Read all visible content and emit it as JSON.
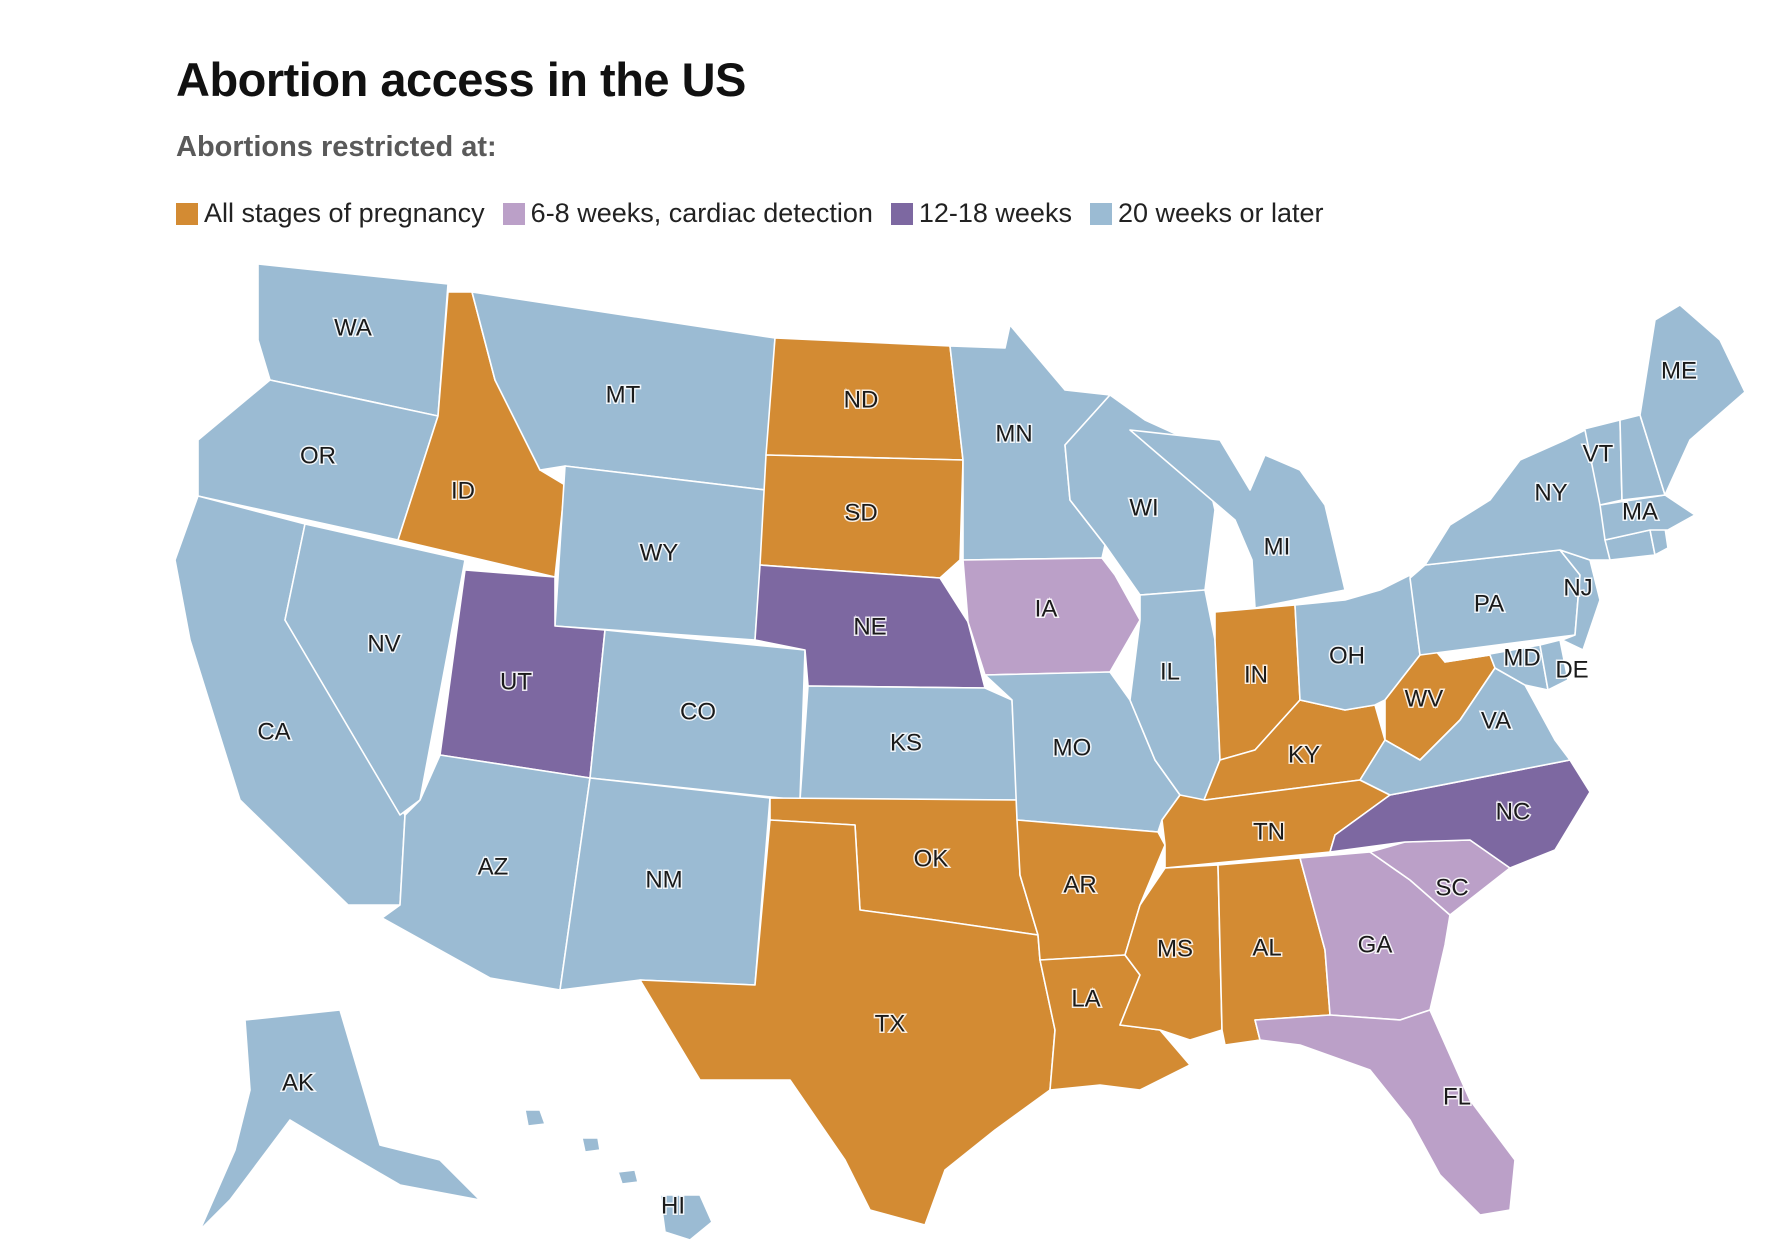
{
  "title": "Abortion access in the US",
  "subtitle": "Abortions restricted at:",
  "legend": [
    {
      "category": "all",
      "label": "All stages of pregnancy",
      "color": "#D38B33"
    },
    {
      "category": "early",
      "label": "6-8 weeks, cardiac detection",
      "color": "#BBA0C8"
    },
    {
      "category": "mid",
      "label": "12-18 weeks",
      "color": "#7D68A1"
    },
    {
      "category": "late",
      "label": "20 weeks or later",
      "color": "#9BBBD3"
    }
  ],
  "states": {
    "WA": "late",
    "OR": "late",
    "CA": "late",
    "NV": "late",
    "ID": "all",
    "MT": "late",
    "WY": "late",
    "UT": "mid",
    "AZ": "late",
    "CO": "late",
    "NM": "late",
    "ND": "all",
    "SD": "all",
    "NE": "mid",
    "KS": "late",
    "OK": "all",
    "TX": "all",
    "MN": "late",
    "IA": "early",
    "MO": "late",
    "AR": "all",
    "LA": "all",
    "WI": "late",
    "IL": "late",
    "MS": "all",
    "MI": "late",
    "IN": "all",
    "KY": "all",
    "TN": "all",
    "AL": "all",
    "OH": "late",
    "WV": "all",
    "GA": "early",
    "FL": "early",
    "SC": "early",
    "NC": "mid",
    "VA": "late",
    "PA": "late",
    "NY": "late",
    "NJ": "late",
    "DE": "late",
    "MD": "late",
    "VT": "late",
    "NH": "late",
    "ME": "late",
    "MA": "late",
    "CT": "late",
    "RI": "late",
    "AK": "late",
    "HI": "late"
  },
  "labels": [
    "WA",
    "OR",
    "CA",
    "NV",
    "ID",
    "MT",
    "WY",
    "UT",
    "AZ",
    "CO",
    "NM",
    "ND",
    "SD",
    "NE",
    "KS",
    "OK",
    "TX",
    "MN",
    "IA",
    "MO",
    "AR",
    "LA",
    "WI",
    "IL",
    "MS",
    "MI",
    "IN",
    "KY",
    "TN",
    "AL",
    "OH",
    "WV",
    "GA",
    "FL",
    "SC",
    "NC",
    "VA",
    "PA",
    "NY",
    "NJ",
    "DE",
    "MD",
    "VT",
    "ME",
    "MA",
    "AK",
    "HI"
  ]
}
